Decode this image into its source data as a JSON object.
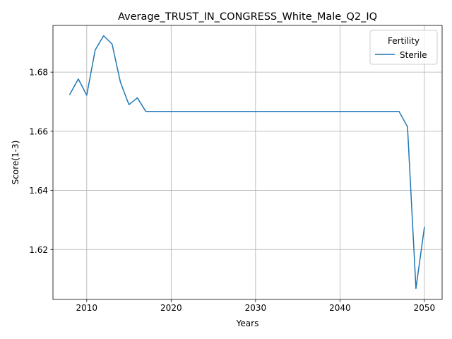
{
  "chart_data": {
    "type": "line",
    "title": "Average_TRUST_IN_CONGRESS_White_Male_Q2_IQ",
    "xlabel": "Years",
    "ylabel": "Score(1-3)",
    "xlim": [
      2006,
      2052.1
    ],
    "ylim": [
      1.6031,
      1.6958
    ],
    "x_ticks": [
      2010,
      2020,
      2030,
      2040,
      2050
    ],
    "y_ticks": [
      1.62,
      1.64,
      1.66,
      1.68
    ],
    "grid": true,
    "legend": {
      "title": "Fertility",
      "position": "upper right"
    },
    "series": [
      {
        "name": "Sterile",
        "color": "#1f77b4",
        "x": [
          2008,
          2009,
          2010,
          2011,
          2012,
          2013,
          2014,
          2015,
          2016,
          2017,
          2018,
          2019,
          2020,
          2021,
          2022,
          2023,
          2024,
          2025,
          2026,
          2027,
          2028,
          2029,
          2030,
          2031,
          2032,
          2033,
          2034,
          2035,
          2036,
          2037,
          2038,
          2039,
          2040,
          2041,
          2042,
          2043,
          2044,
          2045,
          2046,
          2047,
          2048,
          2049,
          2050
        ],
        "y": [
          1.6725,
          1.6777,
          1.6722,
          1.6875,
          1.6923,
          1.6895,
          1.6765,
          1.669,
          1.6713,
          1.6667,
          1.6667,
          1.6667,
          1.6667,
          1.6667,
          1.6667,
          1.6667,
          1.6667,
          1.6667,
          1.6667,
          1.6667,
          1.6667,
          1.6667,
          1.6667,
          1.6667,
          1.6667,
          1.6667,
          1.6667,
          1.6667,
          1.6667,
          1.6667,
          1.6667,
          1.6667,
          1.6667,
          1.6667,
          1.6667,
          1.6667,
          1.6667,
          1.6667,
          1.6667,
          1.6667,
          1.6615,
          1.6068,
          1.6275
        ]
      }
    ]
  }
}
